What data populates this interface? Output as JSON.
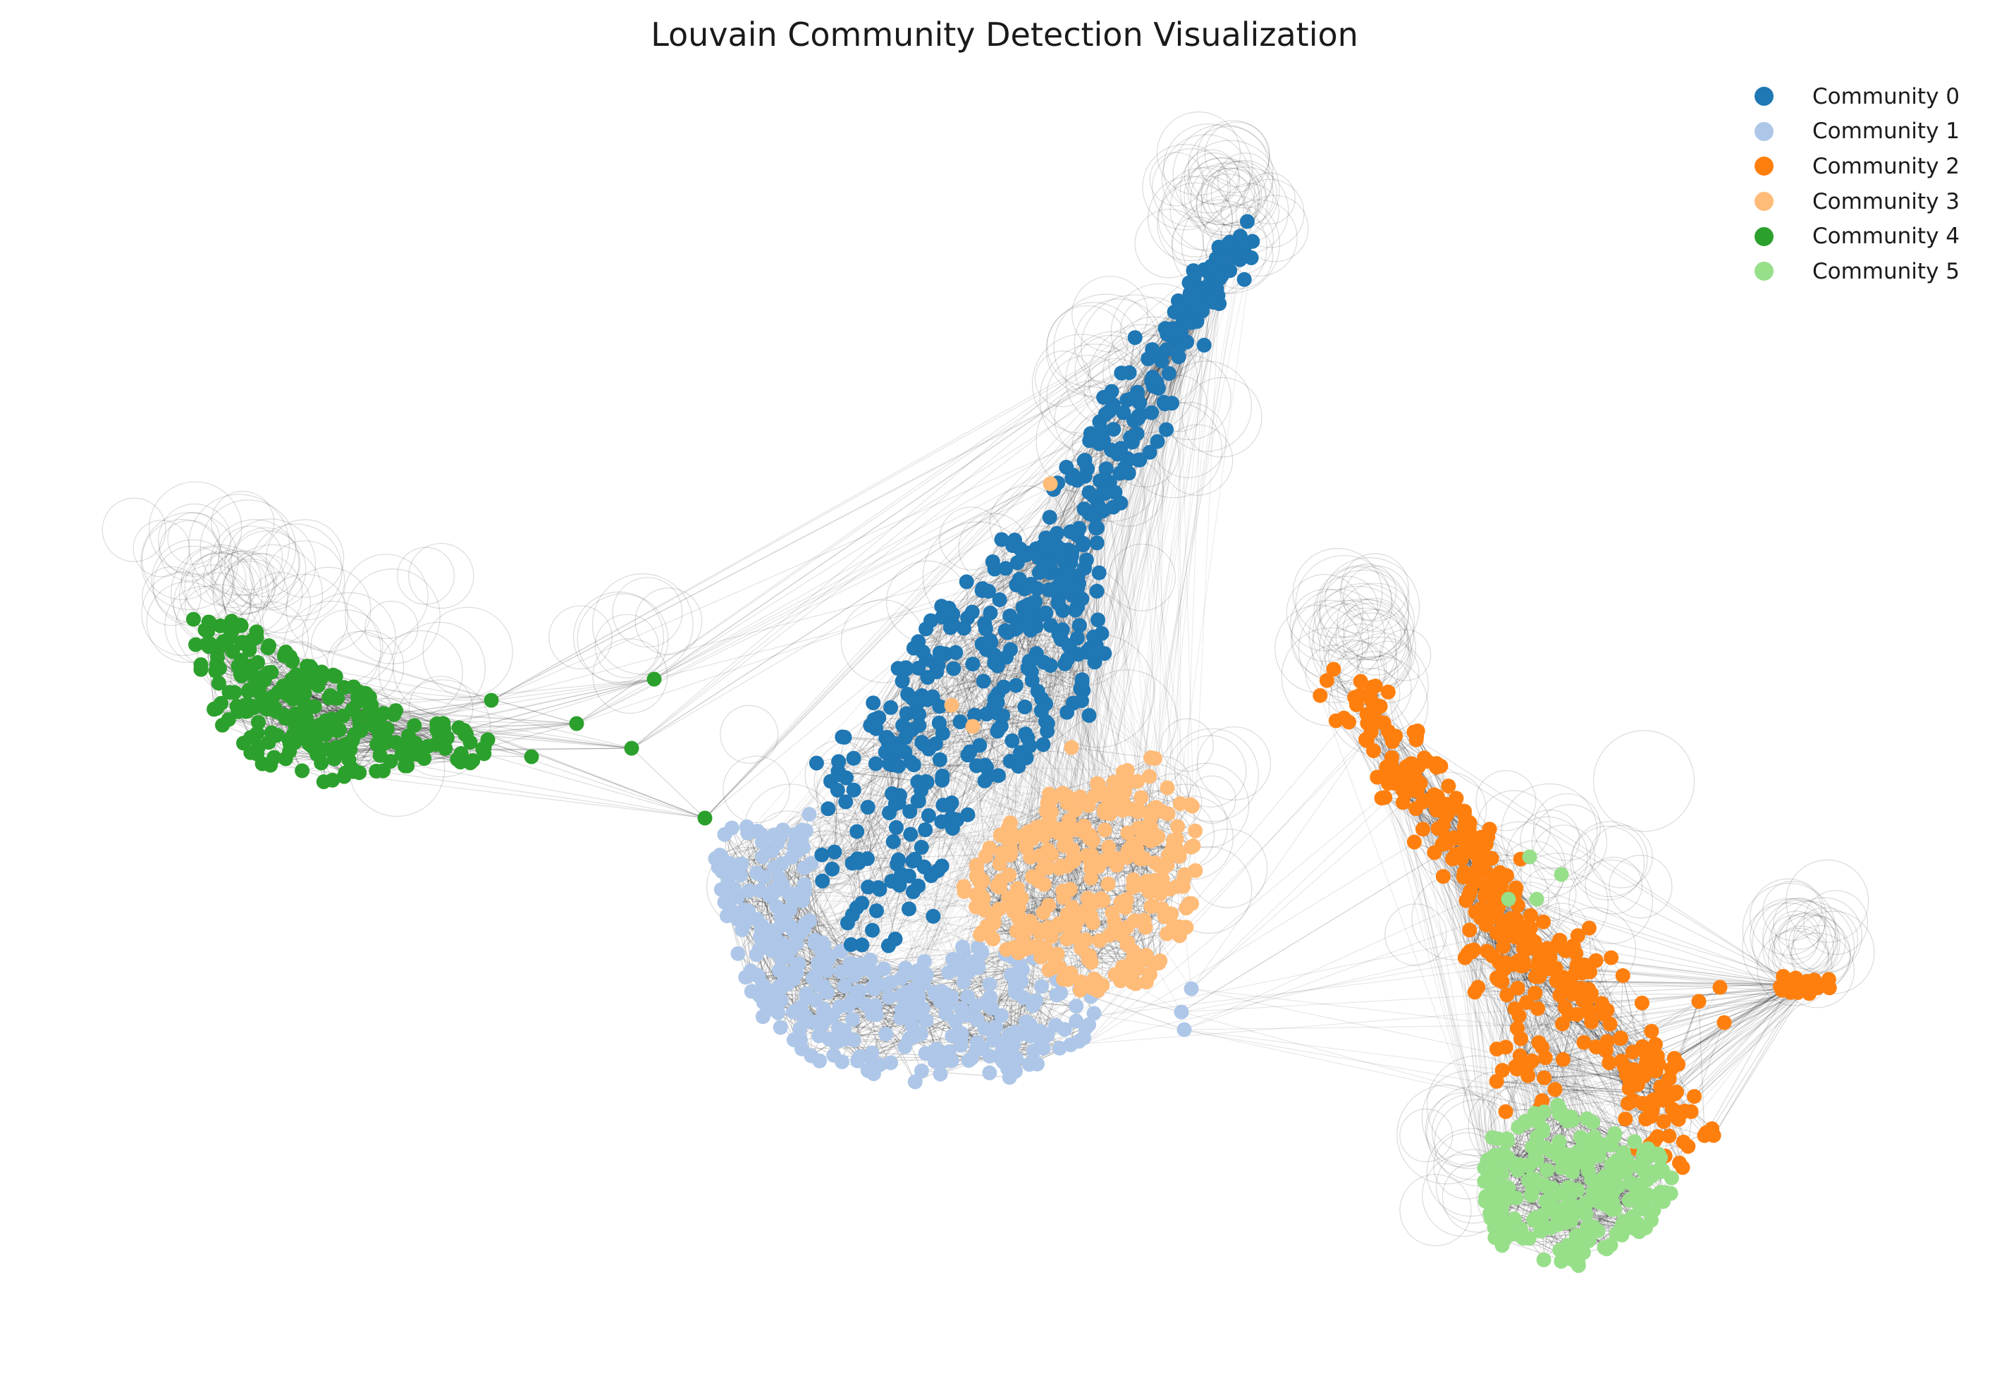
{
  "title": "Louvain Community Detection Visualization",
  "legend": [
    {
      "label": "Community 0",
      "color": "#1f77b4"
    },
    {
      "label": "Community 1",
      "color": "#aec7e8"
    },
    {
      "label": "Community 2",
      "color": "#ff7f0e"
    },
    {
      "label": "Community 3",
      "color": "#ffbb78"
    },
    {
      "label": "Community 4",
      "color": "#2ca02c"
    },
    {
      "label": "Community 5",
      "color": "#98df8a"
    }
  ],
  "edge_color": "#000000",
  "background": "#ffffff"
}
